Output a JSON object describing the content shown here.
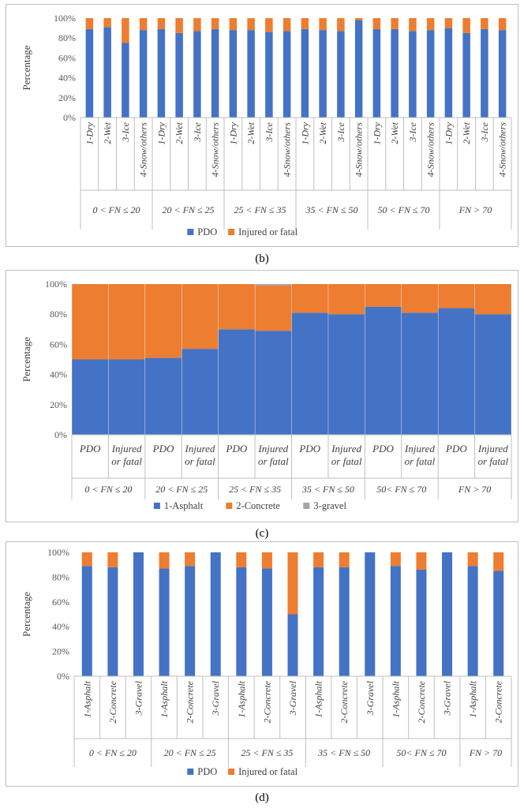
{
  "colors": {
    "pdo": "#4472C4",
    "injured": "#ED7D31",
    "gravel": "#A5A5A5"
  },
  "chart_data": [
    {
      "id": "b",
      "type": "bar",
      "stacked": true,
      "caption": "(b)",
      "ylabel": "Percentage",
      "yticks": [
        "0%",
        "20%",
        "40%",
        "60%",
        "80%",
        "100%"
      ],
      "ylim": [
        0,
        100
      ],
      "groups": [
        "0 < FN ≤ 20",
        "20 < FN ≤ 25",
        "25 < FN ≤ 35",
        "35 < FN ≤ 50",
        "50 < FN ≤ 70",
        "FN > 70"
      ],
      "categories": [
        "1-Dry",
        "2-Wet",
        "3-Ice",
        "4-Snow/others",
        "1-Dry",
        "2-Wet",
        "3-Ice",
        "4-Snow/others",
        "1-Dry",
        "2-Wet",
        "3-Ice",
        "4-Snow/others",
        "1-Dry",
        "2-Wet",
        "3-Ice",
        "4-Snow/others",
        "1-Dry",
        "2-Wet",
        "3-Ice",
        "4-Snow/others",
        "1-Dry",
        "2-Wet",
        "3-Ice",
        "4-Snow/others"
      ],
      "group_sizes": [
        4,
        4,
        4,
        4,
        4,
        4
      ],
      "series": [
        {
          "name": "PDO",
          "color_key": "pdo",
          "values": [
            89,
            91,
            75,
            88,
            89,
            85,
            87,
            89,
            88,
            88,
            86,
            87,
            89,
            88,
            87,
            98,
            89,
            89,
            87,
            88,
            90,
            85,
            89,
            88
          ]
        },
        {
          "name": "Injured or fatal",
          "color_key": "injured",
          "values": [
            11,
            9,
            25,
            12,
            11,
            15,
            13,
            11,
            12,
            12,
            14,
            13,
            11,
            12,
            13,
            2,
            11,
            11,
            13,
            12,
            10,
            15,
            11,
            12
          ]
        }
      ],
      "legend": [
        "PDO",
        "Injured or fatal"
      ],
      "legend_position": "bottom"
    },
    {
      "id": "c",
      "type": "bar",
      "stacked": true,
      "caption": "(c)",
      "ylabel": "Percentage",
      "yticks": [
        "0%",
        "20%",
        "40%",
        "60%",
        "80%",
        "100%"
      ],
      "ylim": [
        0,
        100
      ],
      "groups": [
        "0 < FN ≤ 20",
        "20 < FN ≤ 25",
        "25 < FN ≤ 35",
        "35 < FN ≤ 50",
        "50< FN ≤ 70",
        "FN > 70"
      ],
      "categories": [
        "PDO",
        "Injured or fatal",
        "PDO",
        "Injured or fatal",
        "PDO",
        "Injured or fatal",
        "PDO",
        "Injured or fatal",
        "PDO",
        "Injured or fatal",
        "PDO",
        "Injured or fatal"
      ],
      "group_sizes": [
        2,
        2,
        2,
        2,
        2,
        2
      ],
      "series": [
        {
          "name": "1-Asphalt",
          "color_key": "pdo",
          "values": [
            50,
            50,
            51,
            57,
            70,
            69,
            81,
            80,
            85,
            81,
            84,
            80
          ]
        },
        {
          "name": "2-Concrete",
          "color_key": "injured",
          "values": [
            50,
            50,
            49,
            43,
            30,
            30,
            19,
            20,
            15,
            19,
            16,
            20
          ]
        },
        {
          "name": "3-gravel",
          "color_key": "gravel",
          "values": [
            0,
            0,
            0,
            0,
            0,
            1,
            0,
            0,
            0,
            0,
            0,
            0
          ]
        }
      ],
      "legend": [
        "1-Asphalt",
        "2-Concrete",
        "3-gravel"
      ],
      "legend_position": "bottom"
    },
    {
      "id": "d",
      "type": "bar",
      "stacked": true,
      "caption": "(d)",
      "ylabel": "Percentage",
      "yticks": [
        "0%",
        "20%",
        "40%",
        "60%",
        "80%",
        "100%"
      ],
      "ylim": [
        0,
        100
      ],
      "groups": [
        "0 < FN ≤ 20",
        "20 < FN ≤ 25",
        "25 < FN ≤ 35",
        "35 < FN ≤ 50",
        "50< FN ≤ 70",
        "FN > 70"
      ],
      "categories": [
        "1-Asphalt",
        "2-Concrete",
        "3-Gravel",
        "1-Asphalt",
        "2-Concrete",
        "3-Gravel",
        "1-Asphalt",
        "2-Concrete",
        "3-Gravel",
        "1-Asphalt",
        "2-Concrete",
        "3-Gravel",
        "1-Asphalt",
        "2-Concrete",
        "3-Gravel",
        "1-Asphalt",
        "2-Concrete"
      ],
      "group_sizes": [
        3,
        3,
        3,
        3,
        3,
        2
      ],
      "series": [
        {
          "name": "PDO",
          "color_key": "pdo",
          "values": [
            89,
            88,
            100,
            87,
            89,
            100,
            88,
            87,
            50,
            88,
            88,
            100,
            89,
            86,
            100,
            89,
            85
          ]
        },
        {
          "name": "Injured or fatal",
          "color_key": "injured",
          "values": [
            11,
            12,
            0,
            13,
            11,
            0,
            12,
            13,
            50,
            12,
            12,
            0,
            11,
            14,
            0,
            11,
            15
          ]
        }
      ],
      "legend": [
        "PDO",
        "Injured or fatal"
      ],
      "legend_position": "bottom"
    }
  ]
}
